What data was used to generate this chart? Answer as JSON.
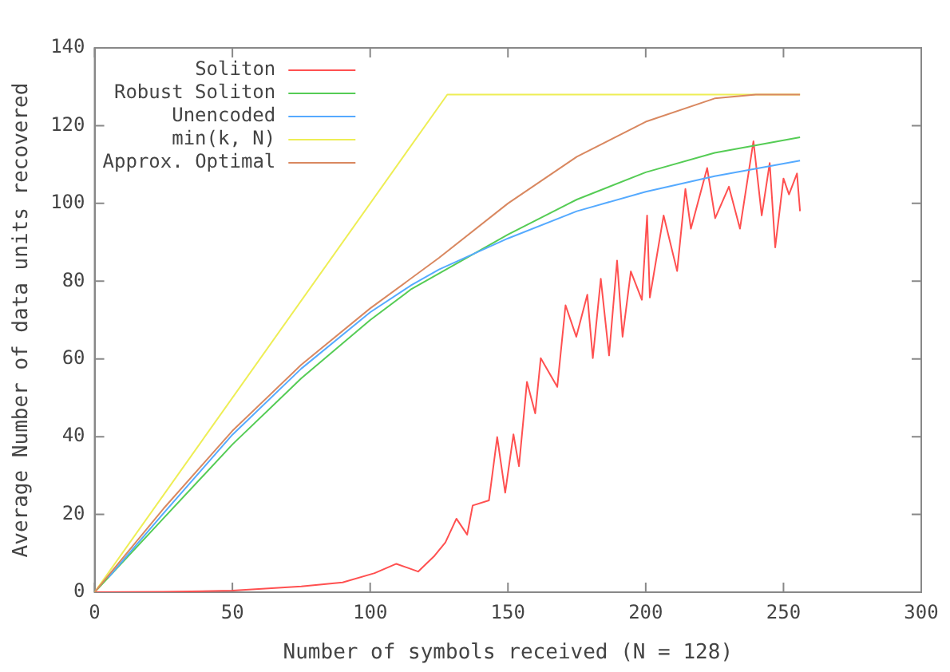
{
  "chart_data": {
    "type": "line",
    "xlabel": "Number of symbols received (N = 128)",
    "ylabel": "Average Number of data units recovered",
    "xlim": [
      0,
      300
    ],
    "xticks": [
      0,
      50,
      100,
      150,
      200,
      250,
      300
    ],
    "ylim": [
      0,
      140
    ],
    "yticks": [
      0,
      20,
      40,
      60,
      80,
      100,
      120,
      140
    ],
    "grid": false,
    "legend": "top left",
    "marker": "none",
    "line_style": "solid",
    "series": [
      {
        "name": "Soliton",
        "color": "#ff5050",
        "x": [
          0,
          25,
          50,
          75,
          90,
          101.6,
          109.5,
          117.4,
          123.4,
          127.3,
          131.3,
          135.2,
          137.2,
          143.1,
          146.1,
          149,
          152,
          154,
          156.9,
          159.9,
          161.9,
          167.9,
          170.9,
          174.8,
          178.8,
          180.8,
          183.7,
          186.7,
          189.6,
          191.6,
          194.6,
          198.6,
          200.5,
          201.5,
          206.5,
          211.4,
          214.4,
          216.4,
          222.3,
          225.2,
          230.2,
          234.2,
          239.1,
          242.1,
          245,
          247,
          250,
          252,
          254.9,
          256
        ],
        "values": [
          0,
          0.1,
          0.4,
          1.5,
          2.5,
          4.9,
          7.3,
          5.3,
          9.4,
          12.8,
          18.9,
          14.8,
          22.3,
          23.6,
          39.9,
          25.6,
          40.6,
          32.4,
          54.1,
          46,
          60.2,
          52.8,
          73.8,
          65.7,
          76.5,
          60.2,
          80.6,
          60.9,
          85.3,
          65.7,
          82.5,
          75.2,
          96.9,
          75.8,
          96.9,
          82.6,
          103.7,
          93.5,
          109.1,
          96.2,
          104.3,
          93.5,
          116,
          96.9,
          110.4,
          88.7,
          106.4,
          102.3,
          107.7,
          98
        ]
      },
      {
        "name": "Robust Soliton",
        "color": "#55cc55",
        "x": [
          0,
          25,
          50,
          75,
          100,
          115,
          125,
          150,
          175,
          200,
          225,
          256
        ],
        "values": [
          0,
          19,
          38,
          55,
          70,
          78,
          82,
          92,
          101,
          108,
          113,
          117
        ]
      },
      {
        "name": "Unencoded",
        "color": "#55aaff",
        "x": [
          5,
          25,
          50,
          75,
          100,
          115,
          125,
          150,
          175,
          200,
          225,
          256
        ],
        "values": [
          3.8,
          20.3,
          40.5,
          57.5,
          72,
          79,
          83,
          91,
          98,
          103,
          107,
          111
        ]
      },
      {
        "name": "min(k, N)",
        "color": "#eeee55",
        "x": [
          0,
          128,
          256
        ],
        "values": [
          0,
          128,
          128
        ]
      },
      {
        "name": "Approx. Optimal",
        "color": "#d98860",
        "x": [
          0,
          25,
          50,
          75,
          100,
          125,
          150,
          175,
          200,
          225,
          240,
          256
        ],
        "values": [
          0,
          21.5,
          41.5,
          58.5,
          73,
          86,
          100,
          112,
          121,
          127,
          128,
          128
        ]
      }
    ]
  }
}
